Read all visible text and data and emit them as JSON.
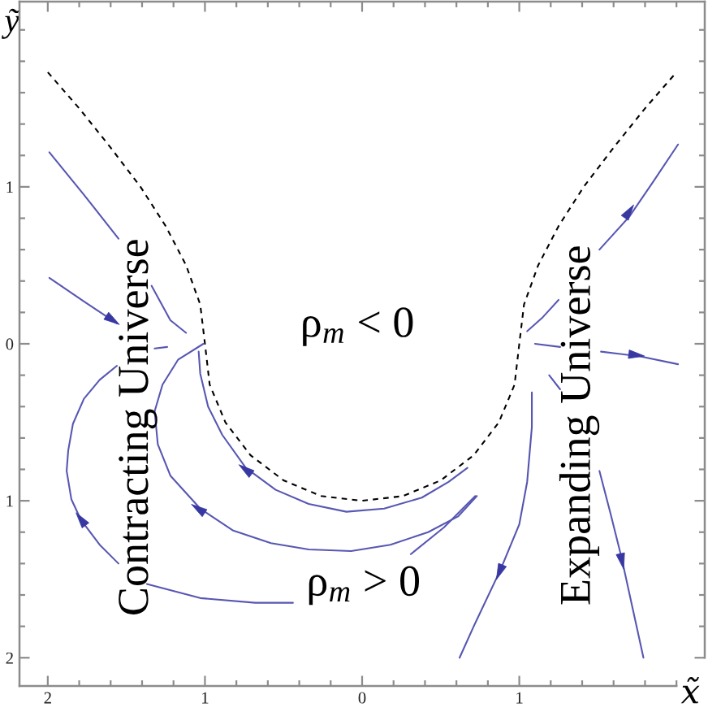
{
  "chart_data": {
    "type": "line",
    "xlabel": "x̃",
    "ylabel": "ỹ",
    "xlim": [
      -2.18,
      2.18
    ],
    "ylim": [
      -2.18,
      2.18
    ],
    "xticks": [
      {
        "value": -2,
        "label": "2"
      },
      {
        "value": -1.8,
        "label": null
      },
      {
        "value": -1.6,
        "label": null
      },
      {
        "value": -1.4,
        "label": null
      },
      {
        "value": -1.2,
        "label": null
      },
      {
        "value": -1,
        "label": "1"
      },
      {
        "value": -0.8,
        "label": null
      },
      {
        "value": -0.6,
        "label": null
      },
      {
        "value": -0.4,
        "label": null
      },
      {
        "value": -0.2,
        "label": null
      },
      0,
      {
        "value": 0.2,
        "label": null
      },
      {
        "value": 0.4,
        "label": null
      },
      {
        "value": 0.6,
        "label": null
      },
      {
        "value": 0.8,
        "label": null
      },
      1,
      {
        "value": 1.2,
        "label": null
      },
      {
        "value": 1.4,
        "label": null
      },
      {
        "value": 1.6,
        "label": null
      },
      {
        "value": 1.8,
        "label": null
      },
      {
        "value": 2,
        "label": null
      }
    ],
    "yticks": [
      {
        "value": -2,
        "label": "2"
      },
      {
        "value": -1.8,
        "label": null
      },
      {
        "value": -1.6,
        "label": null
      },
      {
        "value": -1.4,
        "label": null
      },
      {
        "value": -1.2,
        "label": null
      },
      {
        "value": -1,
        "label": "1"
      },
      {
        "value": -0.8,
        "label": null
      },
      {
        "value": -0.6,
        "label": null
      },
      {
        "value": -0.4,
        "label": null
      },
      {
        "value": -0.2,
        "label": null
      },
      0,
      {
        "value": 0.2,
        "label": null
      },
      {
        "value": 0.4,
        "label": null
      },
      {
        "value": 0.6,
        "label": null
      },
      {
        "value": 0.8,
        "label": null
      },
      1,
      {
        "value": 1.2,
        "label": null
      },
      {
        "value": 1.4,
        "label": null
      },
      {
        "value": 1.6,
        "label": null
      },
      {
        "value": 1.8,
        "label": null
      },
      {
        "value": 2,
        "label": null
      }
    ],
    "annotations": [
      "ρ$_{m}$ < 0",
      "ρ$_{m}$ > 0",
      "Contracting Universe",
      "Expanding Universe"
    ],
    "series": [
      {
        "color": "#000000",
        "line_style": "dashed",
        "x": [
          -2.0,
          -1.8,
          -1.6,
          -1.41,
          -1.25,
          -1.12,
          -1.03,
          -1.0,
          -0.97,
          -0.87,
          -0.71,
          -0.5,
          -0.26,
          0.0,
          0.26,
          0.5,
          0.71,
          0.87,
          0.97,
          1.0,
          1.03,
          1.12,
          1.25,
          1.41,
          1.6,
          1.8,
          2.0
        ],
        "values": [
          1.73,
          1.5,
          1.25,
          1.0,
          0.75,
          0.5,
          0.25,
          0.0,
          -0.26,
          -0.5,
          -0.71,
          -0.87,
          -0.97,
          -1.0,
          -0.97,
          -0.87,
          -0.71,
          -0.5,
          -0.26,
          0.0,
          0.25,
          0.5,
          0.75,
          1.0,
          1.25,
          1.5,
          1.73
        ]
      },
      {
        "color": "#5757b3",
        "x": [
          -1.99,
          -1.77,
          -1.55
        ],
        "values": [
          1.22,
          0.95,
          0.67
        ]
      },
      {
        "color": "#5757b3",
        "x": [
          -1.99,
          -1.77,
          -1.56
        ],
        "values": [
          0.42,
          0.27,
          0.13
        ]
      },
      {
        "color": "#5757b3",
        "x": [
          -1.34,
          -1.22,
          -1.12
        ],
        "values": [
          0.37,
          0.15,
          0.07
        ]
      },
      {
        "color": "#5757b3",
        "x": [
          0.72,
          0.52,
          0.31
        ],
        "values": [
          -0.97,
          -1.17,
          -1.34
        ]
      },
      {
        "color": "#5757b3",
        "x": [
          -0.44,
          -0.68,
          -1.03,
          -1.37
        ],
        "values": [
          -1.65,
          -1.65,
          -1.62,
          -1.53
        ]
      },
      {
        "color": "#5757b3",
        "x": [
          -1.55,
          -1.67,
          -1.79,
          -1.85,
          -1.88,
          -1.87,
          -1.84,
          -1.77,
          -1.67,
          -1.56
        ],
        "values": [
          -1.4,
          -1.28,
          -1.12,
          -0.99,
          -0.81,
          -0.68,
          -0.51,
          -0.35,
          -0.23,
          -0.14
        ]
      },
      {
        "color": "#5757b3",
        "x": [
          -1.32,
          -1.24
        ],
        "values": [
          -0.03,
          -0.02
        ]
      },
      {
        "color": "#5757b3",
        "x": [
          0.73,
          0.61,
          0.42,
          0.18,
          -0.07,
          -0.34,
          -0.58,
          -0.82,
          -1.03,
          -1.22,
          -1.3,
          -1.32,
          -1.27,
          -1.17,
          -1.01
        ],
        "values": [
          -0.97,
          -1.1,
          -1.2,
          -1.28,
          -1.32,
          -1.31,
          -1.27,
          -1.19,
          -1.05,
          -0.84,
          -0.64,
          -0.43,
          -0.26,
          -0.1,
          0.0
        ]
      },
      {
        "color": "#5757b3",
        "x": [
          0.67,
          0.55,
          0.38,
          0.14,
          -0.1,
          -0.34,
          -0.55,
          -0.74,
          -0.89,
          -0.98,
          -1.03,
          -1.04
        ],
        "values": [
          -0.79,
          -0.88,
          -0.98,
          -1.05,
          -1.07,
          -1.02,
          -0.93,
          -0.79,
          -0.58,
          -0.4,
          -0.19,
          -0.05
        ]
      },
      {
        "color": "#5555b1",
        "x": [
          1.08,
          1.08,
          1.05,
          1.0,
          0.88,
          0.71,
          0.62
        ],
        "values": [
          -0.31,
          -0.53,
          -0.88,
          -1.15,
          -1.44,
          -1.8,
          -2.0
        ]
      },
      {
        "color": "#5757b3",
        "x": [
          1.51,
          1.7,
          1.85,
          2.01
        ],
        "values": [
          0.6,
          0.81,
          1.03,
          1.27
        ]
      },
      {
        "color": "#5959b5",
        "x": [
          1.05,
          1.15,
          1.25
        ],
        "values": [
          0.08,
          0.17,
          0.28
        ]
      },
      {
        "color": "#5757b3",
        "x": [
          1.1,
          1.26
        ],
        "values": [
          0.0,
          -0.02
        ]
      },
      {
        "color": "#5757b3",
        "x": [
          1.52,
          1.77,
          2.01
        ],
        "values": [
          -0.05,
          -0.08,
          -0.13
        ]
      },
      {
        "color": "#5757b3",
        "x": [
          1.19,
          1.26
        ],
        "values": [
          -0.2,
          -0.29
        ]
      },
      {
        "color": "#5757b3",
        "x": [
          1.51,
          1.58,
          1.65,
          1.72,
          1.79
        ],
        "values": [
          -0.81,
          -1.08,
          -1.36,
          -1.68,
          -2.0
        ]
      },
      {
        "type": "scatter",
        "marker": "triangle",
        "color": "#3838a2",
        "x": [
          -1.6,
          -1.78,
          -1.03,
          -0.73,
          1.69,
          1.73,
          1.65,
          0.88
        ],
        "values": [
          0.16,
          -1.13,
          -1.06,
          -0.81,
          0.83,
          -0.07,
          -1.37,
          -1.44
        ]
      }
    ]
  }
}
